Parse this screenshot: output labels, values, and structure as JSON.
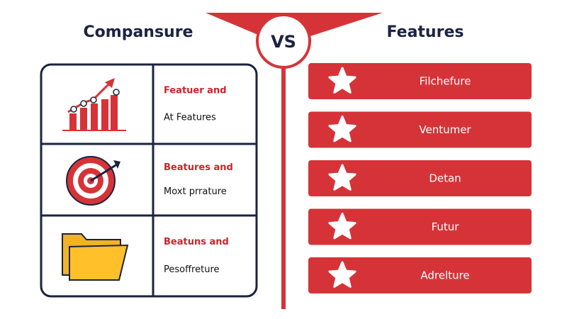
{
  "left": {
    "title": "Compansure",
    "rows": [
      {
        "highlight": "Featuer and",
        "text": "At Features"
      },
      {
        "highlight": "Beatures and",
        "text": "Moxt prrature"
      },
      {
        "highlight": "Beatuns and",
        "text": "Pesoffreture"
      }
    ]
  },
  "center": {
    "label": "VS"
  },
  "right": {
    "title": "Features",
    "items": [
      "Filchefure",
      "Ventumer",
      "Detan",
      "Futur",
      "Adrelture"
    ]
  }
}
